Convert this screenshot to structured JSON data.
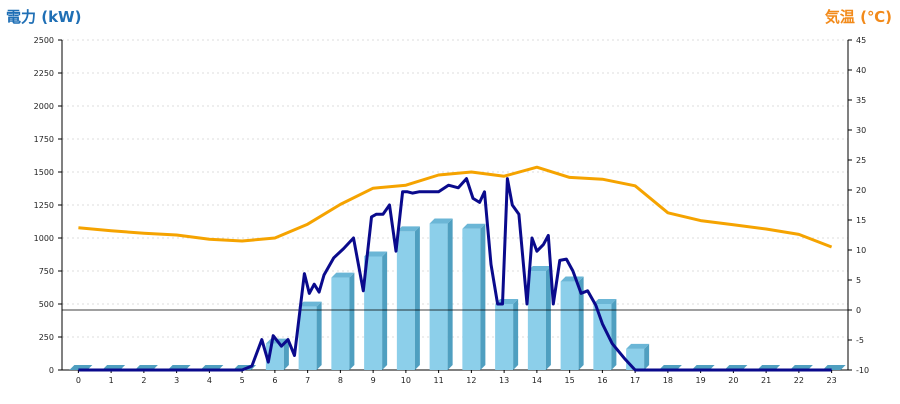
{
  "chart_data": {
    "type": "bar+line",
    "left_axis_title": "電力 (kW)",
    "right_axis_title": "気温 (℃)",
    "x_categories": [
      "0",
      "1",
      "2",
      "3",
      "4",
      "5",
      "6",
      "7",
      "8",
      "9",
      "10",
      "11",
      "12",
      "13",
      "14",
      "15",
      "16",
      "17",
      "18",
      "19",
      "20",
      "21",
      "22",
      "23"
    ],
    "y_left": {
      "min": 0,
      "max": 2500,
      "ticks": [
        0,
        250,
        500,
        750,
        1000,
        1250,
        1500,
        1750,
        2000,
        2250,
        2500
      ]
    },
    "y_right": {
      "min": -10,
      "max": 45,
      "ticks": [
        -10,
        -5,
        0,
        5,
        10,
        15,
        20,
        25,
        30,
        35,
        40,
        45
      ]
    },
    "grid": "horizontal-dashed",
    "colors": {
      "bars": "#8ccfea",
      "bar_dark": "#4f9fc0",
      "power_line": "#0a0a8c",
      "temp_line": "#f5a300",
      "zero_line": "#000000"
    },
    "bars": [
      0,
      0,
      0,
      0,
      0,
      0,
      200,
      480,
      700,
      860,
      1050,
      1110,
      1070,
      500,
      750,
      670,
      500,
      160,
      0,
      0,
      0,
      0,
      0,
      0
    ],
    "power_line": [
      [
        0,
        0
      ],
      [
        5,
        0
      ],
      [
        5.3,
        30
      ],
      [
        5.6,
        230
      ],
      [
        5.8,
        60
      ],
      [
        5.95,
        260
      ],
      [
        6.2,
        180
      ],
      [
        6.4,
        230
      ],
      [
        6.6,
        110
      ],
      [
        6.9,
        730
      ],
      [
        7.05,
        580
      ],
      [
        7.2,
        650
      ],
      [
        7.35,
        590
      ],
      [
        7.5,
        720
      ],
      [
        7.8,
        850
      ],
      [
        8.1,
        920
      ],
      [
        8.4,
        1000
      ],
      [
        8.7,
        600
      ],
      [
        8.95,
        1160
      ],
      [
        9.1,
        1180
      ],
      [
        9.3,
        1180
      ],
      [
        9.5,
        1250
      ],
      [
        9.7,
        900
      ],
      [
        9.9,
        1350
      ],
      [
        10.05,
        1350
      ],
      [
        10.2,
        1340
      ],
      [
        10.4,
        1350
      ],
      [
        11,
        1350
      ],
      [
        11.3,
        1400
      ],
      [
        11.6,
        1380
      ],
      [
        11.85,
        1450
      ],
      [
        12.05,
        1300
      ],
      [
        12.25,
        1270
      ],
      [
        12.4,
        1350
      ],
      [
        12.6,
        800
      ],
      [
        12.8,
        500
      ],
      [
        12.95,
        500
      ],
      [
        13.1,
        1450
      ],
      [
        13.25,
        1250
      ],
      [
        13.45,
        1180
      ],
      [
        13.7,
        500
      ],
      [
        13.85,
        1000
      ],
      [
        14,
        900
      ],
      [
        14.2,
        950
      ],
      [
        14.35,
        1020
      ],
      [
        14.5,
        500
      ],
      [
        14.7,
        830
      ],
      [
        14.9,
        840
      ],
      [
        15.1,
        750
      ],
      [
        15.35,
        580
      ],
      [
        15.55,
        600
      ],
      [
        15.8,
        490
      ],
      [
        16,
        350
      ],
      [
        16.3,
        200
      ],
      [
        16.7,
        80
      ],
      [
        17,
        0
      ],
      [
        23,
        0
      ]
    ],
    "temp_line": [
      [
        0,
        13.7
      ],
      [
        1,
        13.2
      ],
      [
        2,
        12.8
      ],
      [
        3,
        12.5
      ],
      [
        4,
        11.8
      ],
      [
        5,
        11.5
      ],
      [
        6,
        12
      ],
      [
        7,
        14.3
      ],
      [
        8,
        17.6
      ],
      [
        9,
        20.3
      ],
      [
        10,
        20.8
      ],
      [
        11,
        22.5
      ],
      [
        12,
        23
      ],
      [
        13,
        22.3
      ],
      [
        14,
        23.8
      ],
      [
        15,
        22.1
      ],
      [
        16,
        21.8
      ],
      [
        17,
        20.7
      ],
      [
        18,
        16.2
      ],
      [
        19,
        14.9
      ],
      [
        20,
        14.2
      ],
      [
        21,
        13.5
      ],
      [
        22,
        12.6
      ],
      [
        23,
        10.5
      ]
    ]
  }
}
